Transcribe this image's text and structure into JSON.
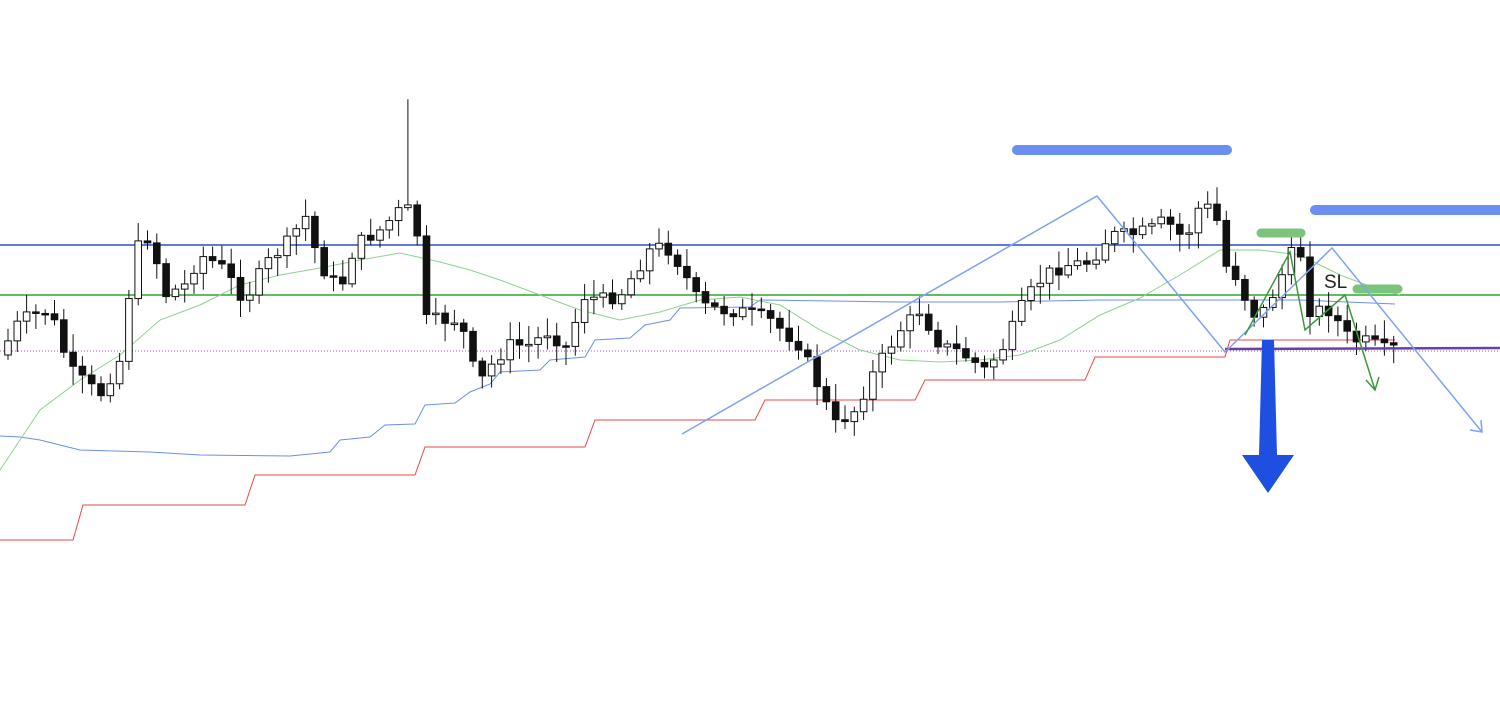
{
  "annotations": {
    "stop_loss_label": "SL"
  }
}
